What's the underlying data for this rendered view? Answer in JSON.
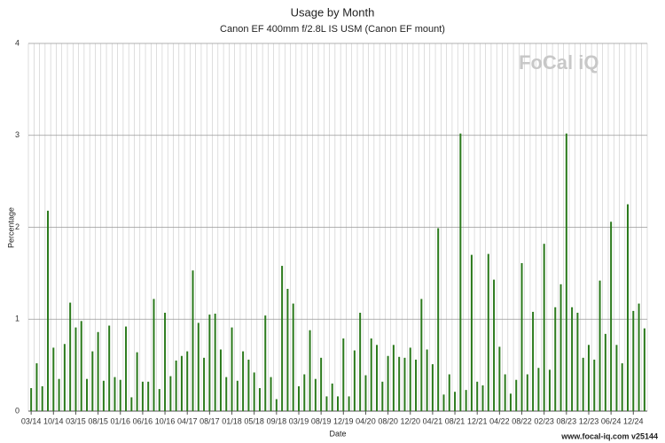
{
  "chart_data": {
    "type": "bar",
    "title": "Usage by Month",
    "subtitle": "Canon EF 400mm f/2.8L IS USM (Canon EF mount)",
    "x_label": "Date",
    "y_label": "Percentage",
    "logo": "FoCal iQ",
    "footer": "www.focal-iq.com  v25144",
    "color": "#2b7a1c",
    "grid": true,
    "ylim": [
      0,
      4
    ],
    "yticks": [
      0,
      1,
      2,
      3,
      4
    ],
    "categories": [
      "03/14",
      null,
      null,
      null,
      "10/14",
      null,
      null,
      null,
      "03/15",
      null,
      null,
      null,
      "08/15",
      null,
      null,
      null,
      "01/16",
      null,
      null,
      null,
      "06/16",
      null,
      null,
      null,
      "10/16",
      null,
      null,
      null,
      "04/17",
      null,
      null,
      null,
      "08/17",
      null,
      null,
      null,
      "01/18",
      null,
      null,
      null,
      "05/18",
      null,
      null,
      null,
      "09/18",
      null,
      null,
      null,
      "03/19",
      null,
      null,
      null,
      "08/19",
      null,
      null,
      null,
      "12/19",
      null,
      null,
      null,
      "04/20",
      null,
      null,
      null,
      "08/20",
      null,
      null,
      null,
      "12/20",
      null,
      null,
      null,
      "04/21",
      null,
      null,
      null,
      "08/21",
      null,
      null,
      null,
      "12/21",
      null,
      null,
      null,
      "04/22",
      null,
      null,
      null,
      "08/22",
      null,
      null,
      null,
      "02/23",
      null,
      null,
      null,
      "08/23",
      null,
      null,
      null,
      "12/23",
      null,
      null,
      null,
      "06/24",
      null,
      null,
      null,
      "12/24",
      null,
      null
    ],
    "values": [
      0.25,
      0.52,
      0.27,
      2.18,
      0.69,
      0.35,
      0.73,
      1.18,
      0.91,
      0.98,
      0.35,
      0.65,
      0.86,
      0.33,
      0.93,
      0.37,
      0.34,
      0.92,
      0.15,
      0.64,
      0.32,
      0.32,
      1.22,
      0.24,
      1.07,
      0.38,
      0.55,
      0.6,
      0.65,
      1.53,
      0.96,
      0.58,
      1.05,
      1.06,
      0.67,
      0.37,
      0.91,
      0.33,
      0.65,
      0.56,
      0.42,
      0.25,
      1.04,
      0.37,
      0.13,
      1.58,
      1.33,
      1.17,
      0.27,
      0.4,
      0.88,
      0.35,
      0.58,
      0.16,
      0.3,
      0.16,
      0.79,
      0.16,
      0.66,
      1.07,
      0.39,
      0.79,
      0.72,
      0.32,
      0.6,
      0.72,
      0.59,
      0.58,
      0.69,
      0.56,
      1.22,
      0.67,
      0.51,
      1.99,
      0.18,
      0.4,
      0.21,
      3.02,
      0.23,
      1.7,
      0.32,
      0.28,
      1.71,
      1.43,
      0.7,
      0.4,
      0.19,
      0.34,
      1.61,
      0.4,
      1.08,
      0.47,
      1.82,
      0.45,
      1.13,
      1.38,
      3.02,
      1.13,
      1.07,
      0.58,
      0.72,
      0.56,
      1.42,
      0.84,
      2.06,
      0.72,
      0.52,
      2.25,
      1.09,
      1.17,
      0.9
    ]
  }
}
